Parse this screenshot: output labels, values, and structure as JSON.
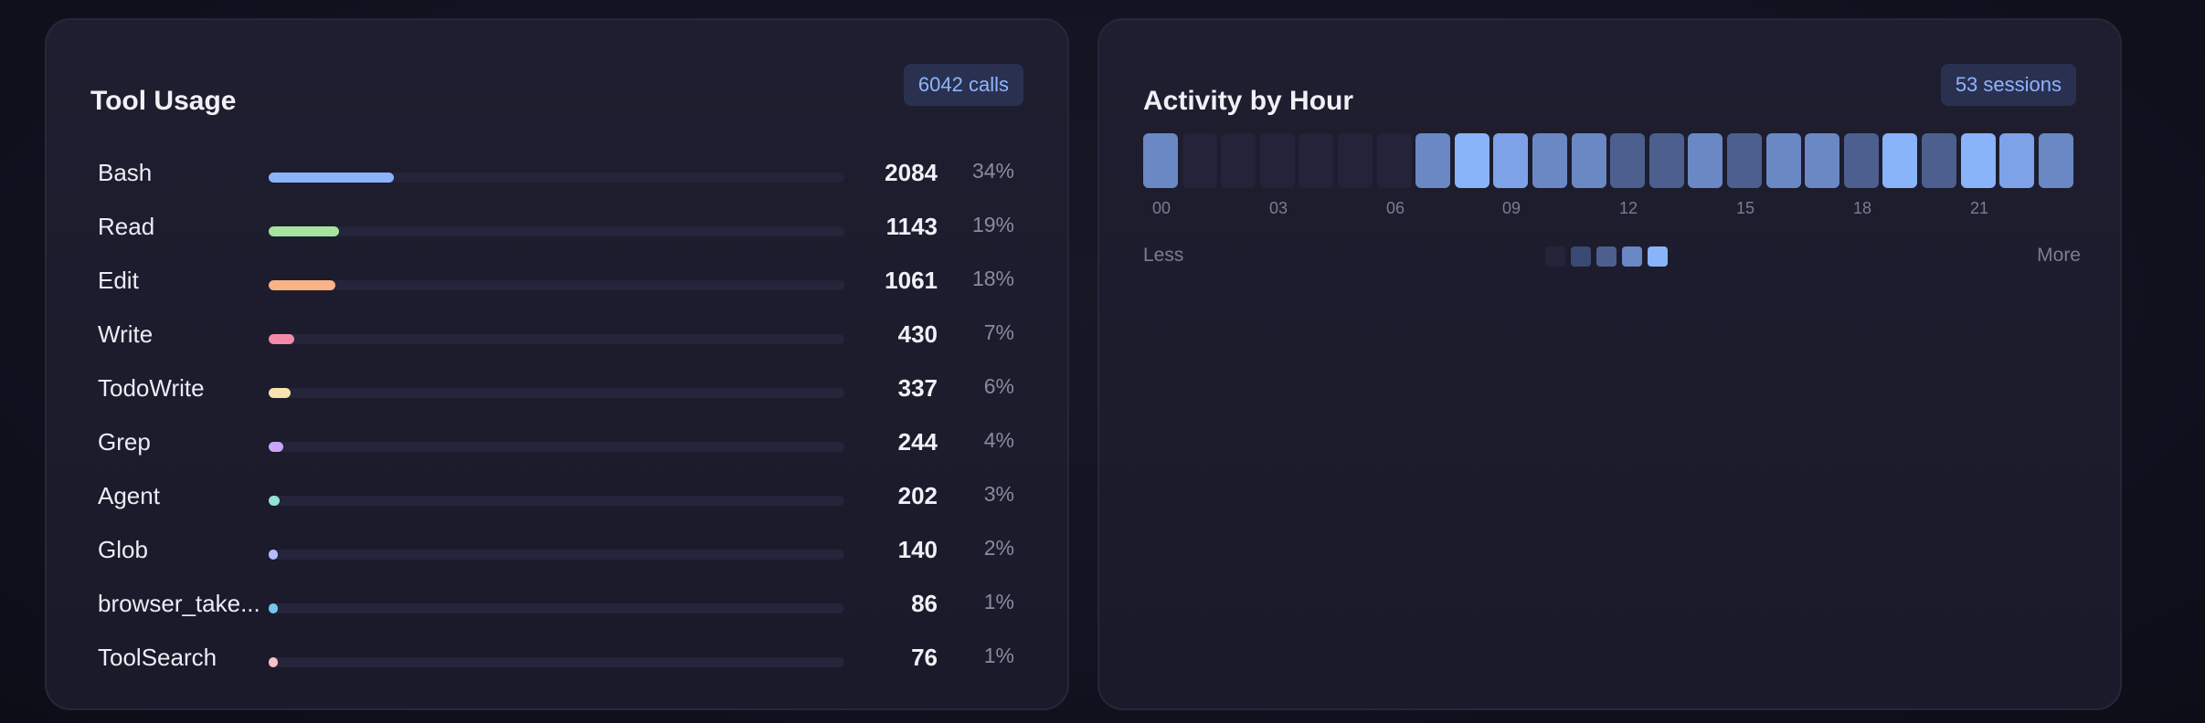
{
  "tool_usage": {
    "title": "Tool Usage",
    "badge": "6042 calls",
    "tools": [
      {
        "name": "Bash",
        "count": "2084",
        "pct": "34%",
        "fraction": 0.34,
        "color": "#89b4fa"
      },
      {
        "name": "Read",
        "count": "1143",
        "pct": "19%",
        "fraction": 0.19,
        "color": "#a6e3a1"
      },
      {
        "name": "Edit",
        "count": "1061",
        "pct": "18%",
        "fraction": 0.18,
        "color": "#fab387"
      },
      {
        "name": "Write",
        "count": "430",
        "pct": "7%",
        "fraction": 0.07,
        "color": "#f38ba8"
      },
      {
        "name": "TodoWrite",
        "count": "337",
        "pct": "6%",
        "fraction": 0.06,
        "color": "#f9e2af"
      },
      {
        "name": "Grep",
        "count": "244",
        "pct": "4%",
        "fraction": 0.04,
        "color": "#cba6f7"
      },
      {
        "name": "Agent",
        "count": "202",
        "pct": "3%",
        "fraction": 0.03,
        "color": "#94e2d5"
      },
      {
        "name": "Glob",
        "count": "140",
        "pct": "2%",
        "fraction": 0.02,
        "color": "#b4befe"
      },
      {
        "name": "browser_take...",
        "count": "86",
        "pct": "1%",
        "fraction": 0.01,
        "color": "#74c7ec"
      },
      {
        "name": "ToolSearch",
        "count": "76",
        "pct": "1%",
        "fraction": 0.01,
        "color": "#f5c2c7"
      }
    ]
  },
  "activity": {
    "title": "Activity by Hour",
    "badge": "53 sessions",
    "hour_labels": [
      "00",
      "03",
      "06",
      "09",
      "12",
      "15",
      "18",
      "21"
    ],
    "hour_levels": [
      3,
      0,
      0,
      0,
      0,
      0,
      0,
      3,
      5,
      4,
      3,
      3,
      2,
      2,
      3,
      2,
      3,
      3,
      2,
      5,
      2,
      5,
      4,
      3
    ],
    "level_colors": [
      "#23233a",
      "#3b4a72",
      "#4d5f8e",
      "#6a88c4",
      "#7ea2e8",
      "#89b4fa"
    ],
    "legend_less": "Less",
    "legend_more": "More",
    "legend_colors": [
      "#23233a",
      "#3b4a72",
      "#4d5f8e",
      "#6a88c4",
      "#89b4fa"
    ]
  }
}
